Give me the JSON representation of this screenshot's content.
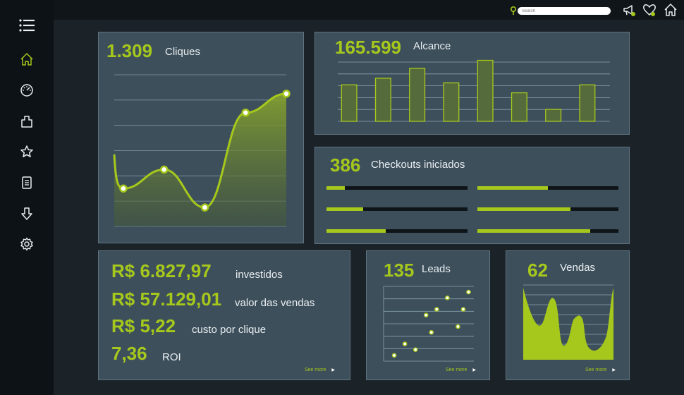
{
  "search": {
    "placeholder": "Search"
  },
  "colors": {
    "accent": "#a6c81c",
    "card": "#3d4f5b",
    "background": "#1b2329",
    "sidebar": "#0d1216"
  },
  "sidebar": {
    "items": [
      {
        "icon": "menu-icon"
      },
      {
        "icon": "home-icon",
        "active": true
      },
      {
        "icon": "dashboard-gauge-icon"
      },
      {
        "icon": "package-icon"
      },
      {
        "icon": "star-icon"
      },
      {
        "icon": "document-icon"
      },
      {
        "icon": "download-arrow-icon"
      },
      {
        "icon": "gear-icon"
      }
    ]
  },
  "topbar": {
    "icons": [
      "location-pin-icon",
      "megaphone-icon",
      "heart-icon",
      "home-icon"
    ]
  },
  "cliques": {
    "value": "1.309",
    "label": "Cliques",
    "chart_data": {
      "type": "area",
      "points": [
        2,
        3,
        1,
        6,
        7
      ]
    }
  },
  "alcance": {
    "value": "165.599",
    "label": "Alcance",
    "chart_data": {
      "type": "bar",
      "values": [
        55,
        65,
        80,
        58,
        92,
        43,
        18,
        55
      ]
    }
  },
  "checkouts": {
    "value": "386",
    "label": "Checkouts iniciados",
    "progress": [
      {
        "left": 0.13,
        "right": 0.5
      },
      {
        "left": 0.26,
        "right": 0.66
      },
      {
        "left": 0.42,
        "right": 0.8
      }
    ]
  },
  "finance": {
    "rows": [
      {
        "value": "R$ 6.827,97",
        "label": "investidos"
      },
      {
        "value": "R$ 57.129,01",
        "label": "valor das vendas"
      },
      {
        "value": "R$ 5,22",
        "label": "custo por clique"
      },
      {
        "value": "7,36",
        "label": "ROI"
      }
    ],
    "see_more": "See more"
  },
  "leads": {
    "value": "135",
    "label": "Leads",
    "see_more": "See more",
    "chart_data": {
      "type": "scatter",
      "points": [
        [
          1,
          1
        ],
        [
          2,
          3
        ],
        [
          3,
          2
        ],
        [
          4,
          8
        ],
        [
          4.5,
          5
        ],
        [
          5,
          9
        ],
        [
          6,
          11
        ],
        [
          7,
          6
        ],
        [
          7.5,
          9
        ],
        [
          8,
          12
        ]
      ]
    }
  },
  "vendas": {
    "value": "62",
    "label": "Vendas",
    "see_more": "See more"
  }
}
